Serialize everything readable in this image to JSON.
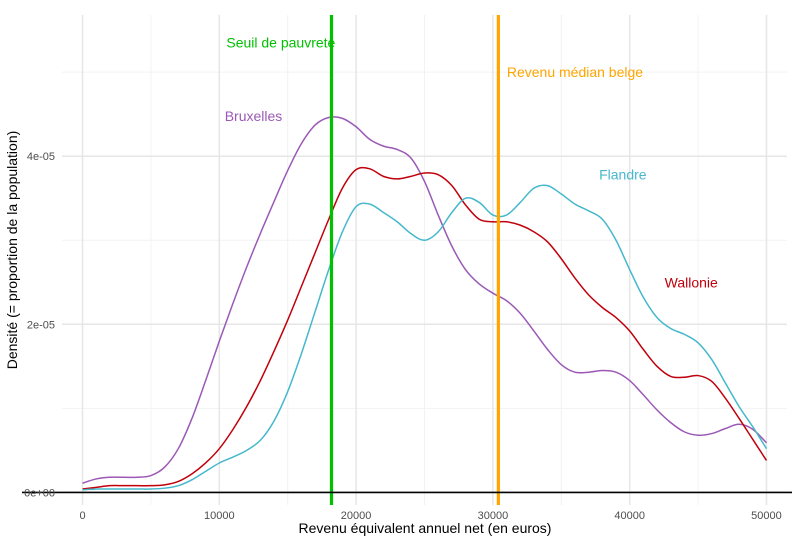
{
  "chart_data": {
    "type": "line",
    "title": "",
    "xlabel": "Revenu équivalent annuel net (en euros)",
    "ylabel": "Densité (= proportion de la population)",
    "xlim": [
      -1500,
      51500
    ],
    "ylim": [
      -1.5e-06,
      5.68e-05
    ],
    "x_ticks": [
      0,
      10000,
      20000,
      30000,
      40000,
      50000
    ],
    "x_tick_labels": [
      "0",
      "10000",
      "20000",
      "30000",
      "40000",
      "50000"
    ],
    "x_minor_ticks": [
      5000,
      15000,
      25000,
      35000,
      45000
    ],
    "y_ticks": [
      0,
      2e-05,
      4e-05
    ],
    "y_tick_labels": [
      "0e+00",
      "2e-05",
      "4e-05"
    ],
    "y_minor_ticks": [
      1e-05,
      3e-05,
      5e-05
    ],
    "grid": true,
    "legend": "none (direct labels)",
    "series": [
      {
        "name": "Bruxelles",
        "color": "#9B59B6",
        "label_pos": [
          12500,
          4.48e-05
        ],
        "x": [
          0,
          1000,
          2000,
          3000,
          4000,
          5000,
          6000,
          7000,
          8000,
          9000,
          10000,
          11000,
          12000,
          13000,
          14000,
          15000,
          16000,
          17000,
          18000,
          19000,
          20000,
          21000,
          22000,
          23000,
          24000,
          25000,
          26000,
          27000,
          28000,
          29000,
          30000,
          31000,
          32000,
          33000,
          34000,
          35000,
          36000,
          37000,
          38000,
          39000,
          40000,
          41000,
          42000,
          43000,
          44000,
          45000,
          46000,
          47000,
          48000,
          49000,
          50000
        ],
        "y": [
          1.1e-06,
          1.6e-06,
          1.8e-06,
          1.8e-06,
          1.8e-06,
          2e-06,
          3e-06,
          5.2e-06,
          8.8e-06,
          1.33e-05,
          1.8e-05,
          2.25e-05,
          2.68e-05,
          3.08e-05,
          3.46e-05,
          3.83e-05,
          4.15e-05,
          4.37e-05,
          4.46e-05,
          4.45e-05,
          4.35e-05,
          4.2e-05,
          4.12e-05,
          4.08e-05,
          3.98e-05,
          3.7e-05,
          3.3e-05,
          2.93e-05,
          2.65e-05,
          2.48e-05,
          2.37e-05,
          2.28e-05,
          2.13e-05,
          1.92e-05,
          1.7e-05,
          1.52e-05,
          1.43e-05,
          1.43e-05,
          1.45e-05,
          1.43e-05,
          1.33e-05,
          1.16e-05,
          9.8e-06,
          8.3e-06,
          7.2e-06,
          6.8e-06,
          7e-06,
          7.6e-06,
          8.1e-06,
          7.5e-06,
          5.9e-06
        ]
      },
      {
        "name": "Wallonie",
        "color": "#C0000B",
        "label_pos": [
          44500,
          2.5e-05
        ],
        "x": [
          0,
          1000,
          2000,
          3000,
          4000,
          5000,
          6000,
          7000,
          8000,
          9000,
          10000,
          11000,
          12000,
          13000,
          14000,
          15000,
          16000,
          17000,
          18000,
          19000,
          20000,
          21000,
          22000,
          23000,
          24000,
          25000,
          26000,
          27000,
          28000,
          29000,
          30000,
          31000,
          32000,
          33000,
          34000,
          35000,
          36000,
          37000,
          38000,
          39000,
          40000,
          41000,
          42000,
          43000,
          44000,
          45000,
          46000,
          47000,
          48000,
          49000,
          50000
        ],
        "y": [
          4e-07,
          6e-07,
          8e-07,
          8e-07,
          8e-07,
          8e-07,
          9e-07,
          1.3e-06,
          2.2e-06,
          3.5e-06,
          5.2e-06,
          7.5e-06,
          1.02e-05,
          1.33e-05,
          1.68e-05,
          2.05e-05,
          2.45e-05,
          2.85e-05,
          3.25e-05,
          3.62e-05,
          3.84e-05,
          3.85e-05,
          3.76e-05,
          3.73e-05,
          3.76e-05,
          3.8e-05,
          3.78e-05,
          3.65e-05,
          3.42e-05,
          3.25e-05,
          3.22e-05,
          3.22e-05,
          3.18e-05,
          3.1e-05,
          2.98e-05,
          2.78e-05,
          2.55e-05,
          2.35e-05,
          2.2e-05,
          2.08e-05,
          1.92e-05,
          1.7e-05,
          1.5e-05,
          1.38e-05,
          1.37e-05,
          1.39e-05,
          1.32e-05,
          1.12e-05,
          8.8e-06,
          6.3e-06,
          3.8e-06
        ]
      },
      {
        "name": "Flandre",
        "color": "#45B8CC",
        "label_pos": [
          39500,
          3.78e-05
        ],
        "x": [
          0,
          1000,
          2000,
          3000,
          4000,
          5000,
          6000,
          7000,
          8000,
          9000,
          10000,
          11000,
          12000,
          13000,
          14000,
          15000,
          16000,
          17000,
          18000,
          19000,
          20000,
          21000,
          22000,
          23000,
          24000,
          25000,
          26000,
          27000,
          28000,
          29000,
          30000,
          31000,
          32000,
          33000,
          34000,
          35000,
          36000,
          37000,
          38000,
          39000,
          40000,
          41000,
          42000,
          43000,
          44000,
          45000,
          46000,
          47000,
          48000,
          49000,
          50000
        ],
        "y": [
          3e-07,
          4e-07,
          4e-07,
          4e-07,
          4e-07,
          4e-07,
          5e-07,
          8e-07,
          1.5e-06,
          2.5e-06,
          3.5e-06,
          4.2e-06,
          5e-06,
          6.2e-06,
          8.5e-06,
          1.2e-05,
          1.65e-05,
          2.15e-05,
          2.65e-05,
          3.1e-05,
          3.4e-05,
          3.43e-05,
          3.33e-05,
          3.22e-05,
          3.08e-05,
          3e-05,
          3.1e-05,
          3.33e-05,
          3.5e-05,
          3.45e-05,
          3.3e-05,
          3.3e-05,
          3.45e-05,
          3.62e-05,
          3.65e-05,
          3.55e-05,
          3.43e-05,
          3.35e-05,
          3.25e-05,
          3e-05,
          2.65e-05,
          2.32e-05,
          2.08e-05,
          1.95e-05,
          1.88e-05,
          1.78e-05,
          1.58e-05,
          1.3e-05,
          1.02e-05,
          7.8e-06,
          5.2e-06
        ]
      }
    ],
    "reference_lines": [
      {
        "name": "Seuil de pauvreté",
        "x": 18200,
        "color": "#00C000",
        "label_pos": [
          14500,
          5.35e-05
        ]
      },
      {
        "name": "Revenu médian belge",
        "x": 30400,
        "color": "#FFA500",
        "label_pos": [
          36000,
          5e-05
        ]
      }
    ],
    "baseline": {
      "y": 0,
      "color": "#000000"
    }
  }
}
